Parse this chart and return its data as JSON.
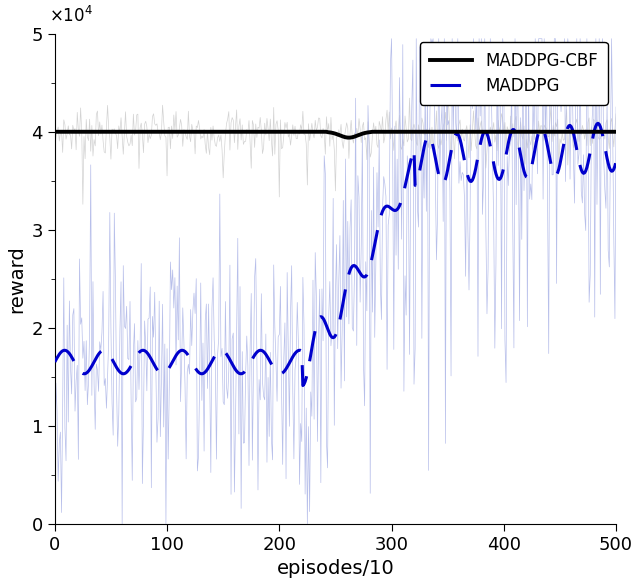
{
  "title": "",
  "xlabel": "episodes/10",
  "ylabel": "reward",
  "xlim": [
    0,
    500
  ],
  "ylim": [
    0,
    50000
  ],
  "yticks": [
    0,
    10000,
    20000,
    30000,
    40000,
    50000
  ],
  "ytick_labels": [
    "0",
    "1",
    "2",
    "3",
    "4",
    "5"
  ],
  "xticks": [
    0,
    100,
    200,
    300,
    400,
    500
  ],
  "cbf_color": "#000000",
  "maddpg_color": "#0000CC",
  "noise_blue_color": "#b0b8e8",
  "noise_gray_color": "#c8c8c8",
  "legend_labels": [
    "MADDPG-CBF",
    "MADDPG"
  ],
  "figsize": [
    6.4,
    5.85
  ],
  "dpi": 100
}
